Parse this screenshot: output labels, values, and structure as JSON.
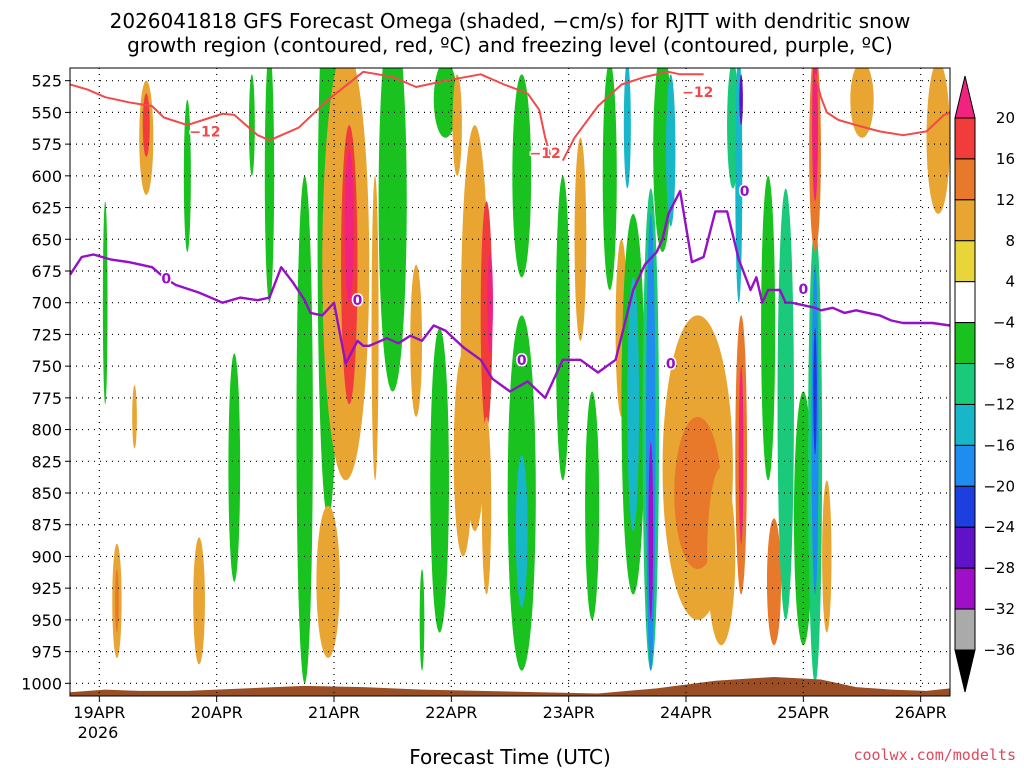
{
  "chart_data": {
    "type": "heatmap",
    "title_lines": [
      "2026041818 GFS Forecast Omega (shaded, −cm/s) for RJTT with dendritic snow",
      "growth region (contoured, red, ºC) and freezing level (contoured, purple, ºC)"
    ],
    "xlabel": "Forecast Time (UTC)",
    "credit": "coolwx.com/modelts",
    "x_ticks": [
      "19APR",
      "20APR",
      "21APR",
      "22APR",
      "23APR",
      "24APR",
      "25APR",
      "26APR"
    ],
    "x_year": "2026",
    "x_range_days": [
      0,
      7.5
    ],
    "y_ticks": [
      525,
      550,
      575,
      600,
      625,
      650,
      675,
      700,
      725,
      750,
      775,
      800,
      825,
      850,
      875,
      900,
      925,
      950,
      975,
      1000
    ],
    "y_range_hpa": [
      515,
      1010
    ],
    "colorbar": {
      "labels": [
        "20",
        "16",
        "12",
        "8",
        "4",
        "−4",
        "−8",
        "−12",
        "−16",
        "−20",
        "−24",
        "−28",
        "−32",
        "−36"
      ],
      "colors": [
        "#f0247f",
        "#f23c3c",
        "#e8782a",
        "#e8a532",
        "#e8d53a",
        "#ffffff",
        "#19c21e",
        "#1bc97a",
        "#17b7c9",
        "#1f8cf0",
        "#1e3fe0",
        "#6012c8",
        "#a00fc8",
        "#aaaaaa",
        "#000000"
      ]
    },
    "snow_label": "−12",
    "freeze_label": "0",
    "dendritic_series": [
      {
        "x": [
          0.0,
          0.15,
          0.3,
          0.5,
          0.7,
          0.8,
          1.0,
          1.2,
          1.3,
          1.4,
          1.5,
          1.6,
          1.7,
          1.75,
          1.85,
          1.95
        ],
        "p": [
          528,
          532,
          538,
          542,
          545,
          554,
          560,
          554,
          551,
          552,
          560,
          568,
          572,
          570,
          566,
          562
        ]
      },
      {
        "x": [
          1.95,
          2.2,
          2.5,
          2.75,
          2.95,
          3.2,
          3.5,
          3.7,
          3.9
        ],
        "p": [
          562,
          540,
          518,
          522,
          530,
          525,
          520,
          528,
          535
        ]
      },
      {
        "x": [
          3.9,
          4.0,
          4.05,
          4.1
        ],
        "p": [
          535,
          548,
          570,
          586
        ]
      },
      {
        "x": [
          4.2,
          4.3,
          4.5,
          4.7,
          4.9,
          5.1,
          5.2,
          5.4
        ],
        "p": [
          588,
          570,
          545,
          528,
          522,
          518,
          520,
          520
        ]
      },
      {
        "x": [
          6.35,
          6.4,
          6.45,
          6.55,
          6.7,
          6.9,
          7.1,
          7.3,
          7.45,
          7.5
        ],
        "p": [
          520,
          538,
          550,
          556,
          560,
          565,
          568,
          565,
          552,
          550
        ]
      }
    ],
    "freezing_series": [
      {
        "x": [
          0.0,
          0.1,
          0.2,
          0.35,
          0.5,
          0.7,
          0.8,
          0.9,
          1.1,
          1.3,
          1.45,
          1.6,
          1.7,
          1.8,
          1.9,
          2.0,
          2.05,
          2.15,
          2.25,
          2.35,
          2.45,
          2.5,
          2.55,
          2.65,
          2.7,
          2.8,
          2.9,
          3.0,
          3.1,
          3.2,
          3.35,
          3.5,
          3.6,
          3.75,
          3.9,
          4.05,
          4.2,
          4.35,
          4.5,
          4.65,
          4.8,
          4.9,
          5.0,
          5.05,
          5.1,
          5.2,
          5.3,
          5.4,
          5.5,
          5.6,
          5.7,
          5.8,
          5.85,
          5.9,
          5.95,
          6.0,
          6.05,
          6.1,
          6.15,
          6.25,
          6.35,
          6.4,
          6.5,
          6.6,
          6.7,
          6.8,
          6.9,
          7.0,
          7.1,
          7.2,
          7.35,
          7.5
        ],
        "p": [
          678,
          664,
          662,
          666,
          668,
          672,
          680,
          686,
          692,
          700,
          696,
          698,
          696,
          672,
          684,
          698,
          708,
          710,
          700,
          748,
          730,
          734,
          734,
          730,
          728,
          732,
          726,
          730,
          718,
          722,
          735,
          745,
          760,
          770,
          762,
          775,
          745,
          745,
          755,
          745,
          690,
          670,
          660,
          650,
          630,
          612,
          668,
          664,
          628,
          628,
          666,
          690,
          680,
          700,
          690,
          690,
          690,
          700,
          700,
          702,
          704,
          706,
          704,
          708,
          706,
          708,
          710,
          714,
          716,
          716,
          716,
          718
        ]
      }
    ],
    "omega_fields": [
      {
        "x": 0.65,
        "p": 570,
        "rx": 0.06,
        "ry": 45,
        "v": 8
      },
      {
        "x": 0.65,
        "p": 560,
        "rx": 0.03,
        "ry": 25,
        "v": 14
      },
      {
        "x": 0.55,
        "p": 790,
        "rx": 0.02,
        "ry": 25,
        "v": 6
      },
      {
        "x": 0.4,
        "p": 935,
        "rx": 0.04,
        "ry": 45,
        "v": 6
      },
      {
        "x": 0.4,
        "p": 935,
        "rx": 0.015,
        "ry": 25,
        "v": 13
      },
      {
        "x": 1.1,
        "p": 935,
        "rx": 0.05,
        "ry": 50,
        "v": 6
      },
      {
        "x": 0.3,
        "p": 700,
        "rx": 0.02,
        "ry": 80,
        "v": -6
      },
      {
        "x": 1.0,
        "p": 600,
        "rx": 0.03,
        "ry": 60,
        "v": -6
      },
      {
        "x": 1.4,
        "p": 830,
        "rx": 0.05,
        "ry": 90,
        "v": -6
      },
      {
        "x": 1.7,
        "p": 600,
        "rx": 0.04,
        "ry": 100,
        "v": -6
      },
      {
        "x": 2.0,
        "p": 800,
        "rx": 0.07,
        "ry": 200,
        "v": -6
      },
      {
        "x": 2.2,
        "p": 650,
        "rx": 0.09,
        "ry": 220,
        "v": -6
      },
      {
        "x": 2.3,
        "p": 570,
        "rx": 0.06,
        "ry": 60,
        "v": -18
      },
      {
        "x": 2.35,
        "p": 670,
        "rx": 0.2,
        "ry": 170,
        "v": 8
      },
      {
        "x": 2.38,
        "p": 670,
        "rx": 0.07,
        "ry": 110,
        "v": 16
      },
      {
        "x": 2.38,
        "p": 640,
        "rx": 0.04,
        "ry": 60,
        "v": 22
      },
      {
        "x": 2.2,
        "p": 920,
        "rx": 0.1,
        "ry": 60,
        "v": 6
      },
      {
        "x": 2.75,
        "p": 620,
        "rx": 0.12,
        "ry": 150,
        "v": -6
      },
      {
        "x": 2.95,
        "p": 730,
        "rx": 0.05,
        "ry": 60,
        "v": 6
      },
      {
        "x": 3.15,
        "p": 840,
        "rx": 0.08,
        "ry": 120,
        "v": -6
      },
      {
        "x": 3.2,
        "p": 540,
        "rx": 0.1,
        "ry": 30,
        "v": -6
      },
      {
        "x": 3.45,
        "p": 720,
        "rx": 0.12,
        "ry": 160,
        "v": 8
      },
      {
        "x": 3.55,
        "p": 710,
        "rx": 0.05,
        "ry": 90,
        "v": 14
      },
      {
        "x": 3.58,
        "p": 700,
        "rx": 0.025,
        "ry": 40,
        "v": 22
      },
      {
        "x": 3.35,
        "p": 820,
        "rx": 0.08,
        "ry": 80,
        "v": 6
      },
      {
        "x": 3.55,
        "p": 860,
        "rx": 0.04,
        "ry": 70,
        "v": 6
      },
      {
        "x": 3.85,
        "p": 600,
        "rx": 0.08,
        "ry": 80,
        "v": -6
      },
      {
        "x": 3.85,
        "p": 850,
        "rx": 0.12,
        "ry": 140,
        "v": -6
      },
      {
        "x": 3.85,
        "p": 880,
        "rx": 0.05,
        "ry": 60,
        "v": -14
      },
      {
        "x": 4.2,
        "p": 720,
        "rx": 0.06,
        "ry": 120,
        "v": -6
      },
      {
        "x": 4.45,
        "p": 860,
        "rx": 0.06,
        "ry": 90,
        "v": -6
      },
      {
        "x": 4.35,
        "p": 650,
        "rx": 0.05,
        "ry": 80,
        "v": 6
      },
      {
        "x": 4.6,
        "p": 600,
        "rx": 0.06,
        "ry": 90,
        "v": -6
      },
      {
        "x": 4.7,
        "p": 720,
        "rx": 0.05,
        "ry": 70,
        "v": 6
      },
      {
        "x": 4.8,
        "p": 780,
        "rx": 0.1,
        "ry": 150,
        "v": -6
      },
      {
        "x": 4.8,
        "p": 780,
        "rx": 0.05,
        "ry": 100,
        "v": -14
      },
      {
        "x": 4.75,
        "p": 560,
        "rx": 0.03,
        "ry": 50,
        "v": -12
      },
      {
        "x": 4.95,
        "p": 800,
        "rx": 0.07,
        "ry": 190,
        "v": -8
      },
      {
        "x": 4.95,
        "p": 810,
        "rx": 0.04,
        "ry": 180,
        "v": -16
      },
      {
        "x": 4.95,
        "p": 880,
        "rx": 0.02,
        "ry": 70,
        "v": -30
      },
      {
        "x": 5.05,
        "p": 580,
        "rx": 0.08,
        "ry": 80,
        "v": -6
      },
      {
        "x": 5.12,
        "p": 580,
        "rx": 0.04,
        "ry": 60,
        "v": -14
      },
      {
        "x": 5.35,
        "p": 830,
        "rx": 0.3,
        "ry": 120,
        "v": 6
      },
      {
        "x": 5.35,
        "p": 850,
        "rx": 0.2,
        "ry": 60,
        "v": 10
      },
      {
        "x": 5.72,
        "p": 820,
        "rx": 0.05,
        "ry": 110,
        "v": 10
      },
      {
        "x": 5.72,
        "p": 820,
        "rx": 0.02,
        "ry": 70,
        "v": 18
      },
      {
        "x": 5.65,
        "p": 560,
        "rx": 0.05,
        "ry": 50,
        "v": -8
      },
      {
        "x": 5.7,
        "p": 600,
        "rx": 0.03,
        "ry": 100,
        "v": -14
      },
      {
        "x": 5.72,
        "p": 540,
        "rx": 0.015,
        "ry": 20,
        "v": -26
      },
      {
        "x": 5.55,
        "p": 900,
        "rx": 0.12,
        "ry": 70,
        "v": 8
      },
      {
        "x": 5.95,
        "p": 720,
        "rx": 0.06,
        "ry": 120,
        "v": -6
      },
      {
        "x": 6.0,
        "p": 920,
        "rx": 0.06,
        "ry": 50,
        "v": 10
      },
      {
        "x": 6.1,
        "p": 780,
        "rx": 0.07,
        "ry": 170,
        "v": -8
      },
      {
        "x": 6.25,
        "p": 870,
        "rx": 0.08,
        "ry": 100,
        "v": -6
      },
      {
        "x": 6.35,
        "p": 820,
        "rx": 0.06,
        "ry": 180,
        "v": -8
      },
      {
        "x": 6.35,
        "p": 800,
        "rx": 0.03,
        "ry": 130,
        "v": -18
      },
      {
        "x": 6.35,
        "p": 770,
        "rx": 0.015,
        "ry": 50,
        "v": -22
      },
      {
        "x": 6.35,
        "p": 580,
        "rx": 0.05,
        "ry": 80,
        "v": 10
      },
      {
        "x": 6.35,
        "p": 560,
        "rx": 0.025,
        "ry": 60,
        "v": 22
      },
      {
        "x": 6.45,
        "p": 900,
        "rx": 0.04,
        "ry": 60,
        "v": 6
      },
      {
        "x": 6.75,
        "p": 540,
        "rx": 0.1,
        "ry": 30,
        "v": 6
      },
      {
        "x": 7.4,
        "p": 570,
        "rx": 0.1,
        "ry": 60,
        "v": 6
      },
      {
        "x": 1.55,
        "p": 560,
        "rx": 0.025,
        "ry": 40,
        "v": -6
      },
      {
        "x": 2.6,
        "p": 720,
        "rx": 0.03,
        "ry": 120,
        "v": 6
      },
      {
        "x": 3.0,
        "p": 950,
        "rx": 0.02,
        "ry": 40,
        "v": -6
      },
      {
        "x": 3.3,
        "p": 560,
        "rx": 0.04,
        "ry": 40,
        "v": 6
      }
    ],
    "terrain": [
      {
        "x": 0.0,
        "p": 1007
      },
      {
        "x": 0.3,
        "p": 1005
      },
      {
        "x": 0.6,
        "p": 1006
      },
      {
        "x": 1.0,
        "p": 1006
      },
      {
        "x": 1.5,
        "p": 1004
      },
      {
        "x": 2.0,
        "p": 1002
      },
      {
        "x": 2.5,
        "p": 1003
      },
      {
        "x": 3.0,
        "p": 1005
      },
      {
        "x": 3.5,
        "p": 1006
      },
      {
        "x": 4.0,
        "p": 1007
      },
      {
        "x": 4.5,
        "p": 1008
      },
      {
        "x": 5.0,
        "p": 1004
      },
      {
        "x": 5.5,
        "p": 998
      },
      {
        "x": 6.0,
        "p": 995
      },
      {
        "x": 6.4,
        "p": 997
      },
      {
        "x": 6.7,
        "p": 1003
      },
      {
        "x": 7.0,
        "p": 1005
      },
      {
        "x": 7.3,
        "p": 1006
      },
      {
        "x": 7.5,
        "p": 1004
      }
    ],
    "dendritic_label_positions": [
      {
        "x": 1.15,
        "p": 565
      },
      {
        "x": 4.05,
        "p": 582
      },
      {
        "x": 5.35,
        "p": 534
      }
    ],
    "freezing_label_positions": [
      {
        "x": 0.82,
        "p": 681
      },
      {
        "x": 2.45,
        "p": 698
      },
      {
        "x": 3.85,
        "p": 745
      },
      {
        "x": 5.12,
        "p": 748
      },
      {
        "x": 5.75,
        "p": 612
      },
      {
        "x": 6.25,
        "p": 689
      }
    ]
  }
}
